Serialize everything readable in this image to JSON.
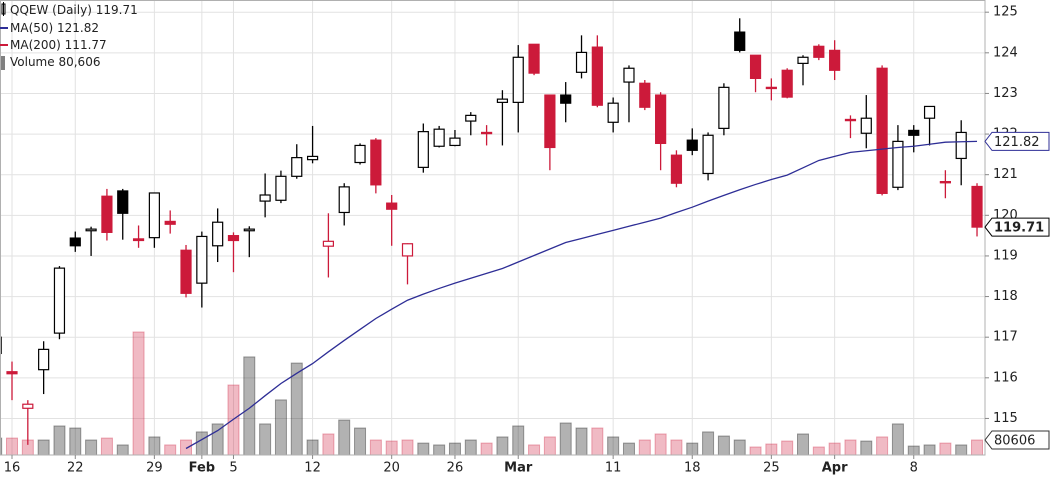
{
  "chart_data": {
    "type": "candlestick",
    "title": "QQEW (Daily)",
    "categories": [
      null,
      "16",
      null,
      null,
      null,
      "22",
      null,
      null,
      null,
      null,
      "29",
      null,
      null,
      "Feb",
      null,
      "5",
      null,
      null,
      null,
      null,
      "12",
      null,
      null,
      null,
      null,
      "20",
      null,
      null,
      null,
      "26",
      null,
      null,
      null,
      "Mar",
      null,
      null,
      null,
      null,
      null,
      "11",
      null,
      null,
      null,
      null,
      "18",
      null,
      null,
      null,
      null,
      "25",
      null,
      null,
      null,
      "Apr",
      null,
      null,
      null,
      null,
      "8",
      null,
      null,
      null,
      null
    ],
    "open": [
      117.0,
      116.15,
      115.25,
      116.2,
      117.1,
      119.44,
      119.62,
      120.47,
      120.6,
      119.42,
      119.45,
      119.85,
      119.14,
      118.33,
      119.25,
      119.5,
      119.62,
      120.35,
      120.37,
      120.96,
      121.37,
      119.24,
      120.07,
      121.3,
      121.85,
      120.3,
      119.0,
      121.18,
      121.7,
      121.72,
      122.32,
      122.04,
      122.78,
      122.78,
      124.21,
      122.96,
      122.96,
      123.52,
      124.14,
      122.29,
      123.28,
      123.25,
      122.96,
      121.48,
      121.85,
      121.03,
      122.14,
      124.51,
      123.94,
      123.15,
      123.57,
      123.74,
      124.16,
      124.06,
      122.36,
      122.02,
      123.62,
      120.69,
      122.09,
      122.39,
      120.83,
      121.4,
      120.71
    ],
    "high": [
      117.1,
      116.4,
      115.45,
      116.9,
      118.75,
      119.6,
      119.72,
      120.65,
      120.65,
      119.75,
      120.55,
      120.12,
      119.27,
      119.6,
      120.17,
      119.58,
      119.73,
      121.03,
      121.1,
      121.75,
      122.2,
      120.05,
      120.79,
      121.77,
      121.9,
      120.5,
      119.31,
      122.26,
      122.2,
      122.1,
      122.54,
      122.22,
      123.08,
      124.19,
      124.21,
      122.96,
      123.28,
      124.43,
      124.43,
      122.9,
      123.69,
      123.33,
      123.03,
      121.6,
      122.14,
      122.04,
      123.25,
      124.85,
      123.94,
      123.37,
      123.62,
      123.94,
      124.21,
      124.31,
      122.46,
      122.96,
      123.69,
      122.22,
      122.22,
      122.68,
      121.11,
      122.34,
      120.79
    ],
    "low": [
      116.5,
      115.45,
      114.35,
      115.6,
      116.95,
      119.1,
      119.0,
      119.38,
      119.4,
      119.2,
      119.2,
      119.55,
      117.98,
      117.73,
      118.85,
      118.6,
      118.97,
      119.95,
      120.3,
      120.9,
      121.28,
      118.47,
      119.75,
      121.25,
      120.54,
      119.25,
      118.3,
      121.05,
      121.67,
      121.7,
      121.97,
      121.72,
      121.72,
      122.04,
      123.45,
      121.11,
      122.29,
      123.37,
      122.66,
      122.04,
      122.29,
      122.59,
      121.11,
      120.69,
      121.48,
      120.86,
      121.97,
      124.01,
      123.03,
      122.83,
      122.88,
      123.2,
      123.82,
      123.33,
      121.9,
      121.65,
      120.49,
      120.62,
      121.55,
      121.72,
      120.42,
      120.74,
      119.48
    ],
    "close": [
      116.6,
      116.1,
      115.35,
      116.7,
      118.7,
      119.25,
      119.66,
      119.58,
      120.05,
      119.38,
      120.55,
      119.78,
      118.08,
      119.48,
      119.83,
      119.38,
      119.66,
      120.5,
      120.96,
      121.42,
      121.45,
      119.36,
      120.7,
      121.72,
      120.75,
      120.15,
      119.3,
      122.06,
      122.12,
      121.9,
      122.46,
      122.02,
      122.86,
      123.89,
      123.5,
      121.67,
      122.76,
      124.01,
      122.71,
      122.76,
      123.62,
      122.66,
      121.77,
      120.79,
      121.6,
      121.97,
      123.15,
      124.06,
      123.37,
      123.13,
      122.91,
      123.89,
      123.89,
      123.57,
      122.34,
      122.39,
      120.54,
      121.82,
      121.97,
      122.68,
      120.81,
      122.04,
      119.71
    ],
    "candle_colors": [
      "#000000",
      "#cc1a3a",
      "#cc1a3a",
      "#000000",
      "#000000",
      "#000000",
      "#000000",
      "#cc1a3a",
      "#000000",
      "#cc1a3a",
      "#000000",
      "#cc1a3a",
      "#cc1a3a",
      "#000000",
      "#000000",
      "#cc1a3a",
      "#000000",
      "#000000",
      "#000000",
      "#000000",
      "#000000",
      "#cc1a3a",
      "#000000",
      "#000000",
      "#cc1a3a",
      "#cc1a3a",
      "#cc1a3a",
      "#000000",
      "#000000",
      "#000000",
      "#000000",
      "#cc1a3a",
      "#000000",
      "#000000",
      "#cc1a3a",
      "#cc1a3a",
      "#000000",
      "#000000",
      "#cc1a3a",
      "#000000",
      "#000000",
      "#cc1a3a",
      "#cc1a3a",
      "#cc1a3a",
      "#000000",
      "#000000",
      "#000000",
      "#000000",
      "#cc1a3a",
      "#cc1a3a",
      "#cc1a3a",
      "#000000",
      "#cc1a3a",
      "#cc1a3a",
      "#cc1a3a",
      "#000000",
      "#cc1a3a",
      "#000000",
      "#000000",
      "#000000",
      "#cc1a3a",
      "#000000",
      "#cc1a3a"
    ],
    "series": [
      {
        "name": "MA(50)",
        "color": "#2e2e96",
        "values": [
          null,
          null,
          null,
          null,
          null,
          null,
          null,
          null,
          null,
          null,
          null,
          null,
          114.26,
          114.48,
          114.7,
          114.98,
          115.25,
          115.56,
          115.86,
          116.11,
          116.35,
          116.64,
          116.92,
          117.19,
          117.46,
          117.69,
          117.91,
          118.06,
          118.2,
          118.33,
          118.45,
          118.57,
          118.69,
          118.85,
          119.01,
          119.17,
          119.33,
          119.43,
          119.53,
          119.63,
          119.73,
          119.83,
          119.93,
          120.07,
          120.2,
          120.35,
          120.49,
          120.63,
          120.76,
          120.88,
          120.99,
          121.17,
          121.35,
          121.45,
          121.55,
          121.59,
          121.63,
          121.67,
          121.7,
          121.75,
          121.8,
          121.81,
          121.82
        ]
      }
    ],
    "ma200": {
      "name": "MA(200)",
      "color": "#cc1a3a",
      "value": 111.77
    },
    "volume": {
      "name": "Volume",
      "color": "#808080",
      "values": [
        91000,
        91000,
        80600,
        80600,
        156000,
        145000,
        80600,
        91000,
        54000,
        661000,
        97000,
        54000,
        80600,
        124000,
        167000,
        376000,
        527000,
        167000,
        296000,
        494000,
        80600,
        113000,
        188000,
        145000,
        80600,
        75000,
        80600,
        64000,
        54000,
        64000,
        80600,
        64000,
        97000,
        156000,
        54000,
        97000,
        172000,
        145000,
        145000,
        97000,
        64000,
        80600,
        113000,
        80600,
        64000,
        124000,
        102000,
        80600,
        43000,
        59000,
        75000,
        113000,
        43000,
        64000,
        80600,
        75000,
        97000,
        167000,
        48000,
        54000,
        64000,
        54000,
        80606
      ],
      "last_label": "80,606"
    },
    "ylim": [
      114.1,
      125.3
    ],
    "yticks": [
      115,
      116,
      117,
      118,
      119,
      120,
      121,
      122,
      123,
      124,
      125
    ],
    "vlim": [
      0,
      2445000
    ],
    "grid": true
  }
}
